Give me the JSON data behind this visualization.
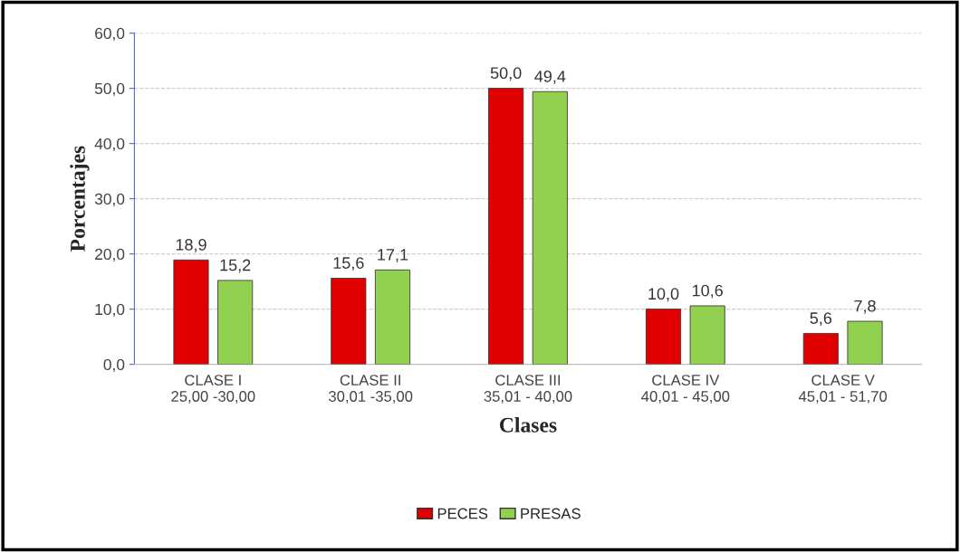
{
  "chart_data": {
    "type": "bar",
    "xlabel": "Clases",
    "ylabel": "Porcentajes",
    "categories": [
      "CLASE I\n25,00 -30,00",
      "CLASE II\n30,01 -35,00",
      "CLASE III\n35,01 - 40,00",
      "CLASE IV\n40,01 - 45,00",
      "CLASE V\n45,01 - 51,70"
    ],
    "series": [
      {
        "name": "PECES",
        "color": "#e00000",
        "values": [
          18.9,
          15.6,
          50.0,
          10.0,
          5.6
        ],
        "value_labels": [
          "18,9",
          "15,6",
          "50,0",
          "10,0",
          "5,6"
        ]
      },
      {
        "name": "PRESAS",
        "color": "#92d050",
        "values": [
          15.2,
          17.1,
          49.4,
          10.6,
          7.8
        ],
        "value_labels": [
          "15,2",
          "17,1",
          "49,4",
          "10,6",
          "7,8"
        ]
      }
    ],
    "ylim": [
      0,
      60
    ],
    "yticks": [
      {
        "value": 0,
        "label": "0,0"
      },
      {
        "value": 10,
        "label": "10,0"
      },
      {
        "value": 20,
        "label": "20,0"
      },
      {
        "value": 30,
        "label": "30,0"
      },
      {
        "value": 40,
        "label": "40,0"
      },
      {
        "value": 50,
        "label": "50,0"
      },
      {
        "value": 60,
        "label": "60,0"
      }
    ],
    "grid": "y",
    "legend": "bottom"
  }
}
